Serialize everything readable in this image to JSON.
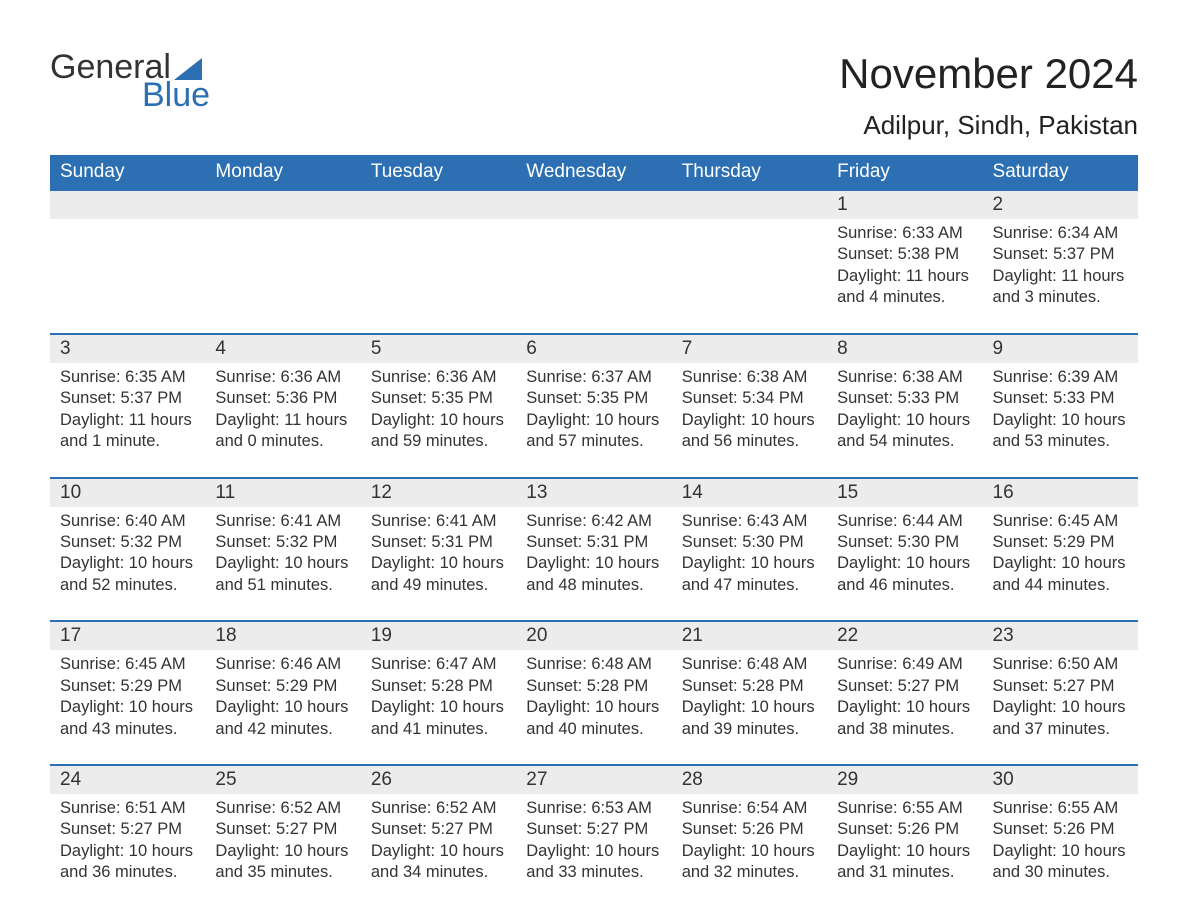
{
  "logo": {
    "text_general": "General",
    "text_blue": "Blue",
    "shape_color": "#2c6fb3"
  },
  "title": "November 2024",
  "location": "Adilpur, Sindh, Pakistan",
  "colors": {
    "header_bg": "#2c6fb3",
    "header_text": "#ffffff",
    "daynum_bg": "#ececec",
    "row_border": "#2c6fb3",
    "body_text": "#333333",
    "background": "#ffffff"
  },
  "typography": {
    "month_title_fontsize": 42,
    "location_fontsize": 26,
    "weekday_fontsize": 19,
    "daynum_fontsize": 19,
    "detail_fontsize": 16.5,
    "font_family": "Arial"
  },
  "weekdays": [
    "Sunday",
    "Monday",
    "Tuesday",
    "Wednesday",
    "Thursday",
    "Friday",
    "Saturday"
  ],
  "labels": {
    "sunrise": "Sunrise: ",
    "sunset": "Sunset: ",
    "daylight": "Daylight: "
  },
  "weeks": [
    [
      null,
      null,
      null,
      null,
      null,
      {
        "day": "1",
        "sunrise": "6:33 AM",
        "sunset": "5:38 PM",
        "daylight": "11 hours and 4 minutes."
      },
      {
        "day": "2",
        "sunrise": "6:34 AM",
        "sunset": "5:37 PM",
        "daylight": "11 hours and 3 minutes."
      }
    ],
    [
      {
        "day": "3",
        "sunrise": "6:35 AM",
        "sunset": "5:37 PM",
        "daylight": "11 hours and 1 minute."
      },
      {
        "day": "4",
        "sunrise": "6:36 AM",
        "sunset": "5:36 PM",
        "daylight": "11 hours and 0 minutes."
      },
      {
        "day": "5",
        "sunrise": "6:36 AM",
        "sunset": "5:35 PM",
        "daylight": "10 hours and 59 minutes."
      },
      {
        "day": "6",
        "sunrise": "6:37 AM",
        "sunset": "5:35 PM",
        "daylight": "10 hours and 57 minutes."
      },
      {
        "day": "7",
        "sunrise": "6:38 AM",
        "sunset": "5:34 PM",
        "daylight": "10 hours and 56 minutes."
      },
      {
        "day": "8",
        "sunrise": "6:38 AM",
        "sunset": "5:33 PM",
        "daylight": "10 hours and 54 minutes."
      },
      {
        "day": "9",
        "sunrise": "6:39 AM",
        "sunset": "5:33 PM",
        "daylight": "10 hours and 53 minutes."
      }
    ],
    [
      {
        "day": "10",
        "sunrise": "6:40 AM",
        "sunset": "5:32 PM",
        "daylight": "10 hours and 52 minutes."
      },
      {
        "day": "11",
        "sunrise": "6:41 AM",
        "sunset": "5:32 PM",
        "daylight": "10 hours and 51 minutes."
      },
      {
        "day": "12",
        "sunrise": "6:41 AM",
        "sunset": "5:31 PM",
        "daylight": "10 hours and 49 minutes."
      },
      {
        "day": "13",
        "sunrise": "6:42 AM",
        "sunset": "5:31 PM",
        "daylight": "10 hours and 48 minutes."
      },
      {
        "day": "14",
        "sunrise": "6:43 AM",
        "sunset": "5:30 PM",
        "daylight": "10 hours and 47 minutes."
      },
      {
        "day": "15",
        "sunrise": "6:44 AM",
        "sunset": "5:30 PM",
        "daylight": "10 hours and 46 minutes."
      },
      {
        "day": "16",
        "sunrise": "6:45 AM",
        "sunset": "5:29 PM",
        "daylight": "10 hours and 44 minutes."
      }
    ],
    [
      {
        "day": "17",
        "sunrise": "6:45 AM",
        "sunset": "5:29 PM",
        "daylight": "10 hours and 43 minutes."
      },
      {
        "day": "18",
        "sunrise": "6:46 AM",
        "sunset": "5:29 PM",
        "daylight": "10 hours and 42 minutes."
      },
      {
        "day": "19",
        "sunrise": "6:47 AM",
        "sunset": "5:28 PM",
        "daylight": "10 hours and 41 minutes."
      },
      {
        "day": "20",
        "sunrise": "6:48 AM",
        "sunset": "5:28 PM",
        "daylight": "10 hours and 40 minutes."
      },
      {
        "day": "21",
        "sunrise": "6:48 AM",
        "sunset": "5:28 PM",
        "daylight": "10 hours and 39 minutes."
      },
      {
        "day": "22",
        "sunrise": "6:49 AM",
        "sunset": "5:27 PM",
        "daylight": "10 hours and 38 minutes."
      },
      {
        "day": "23",
        "sunrise": "6:50 AM",
        "sunset": "5:27 PM",
        "daylight": "10 hours and 37 minutes."
      }
    ],
    [
      {
        "day": "24",
        "sunrise": "6:51 AM",
        "sunset": "5:27 PM",
        "daylight": "10 hours and 36 minutes."
      },
      {
        "day": "25",
        "sunrise": "6:52 AM",
        "sunset": "5:27 PM",
        "daylight": "10 hours and 35 minutes."
      },
      {
        "day": "26",
        "sunrise": "6:52 AM",
        "sunset": "5:27 PM",
        "daylight": "10 hours and 34 minutes."
      },
      {
        "day": "27",
        "sunrise": "6:53 AM",
        "sunset": "5:27 PM",
        "daylight": "10 hours and 33 minutes."
      },
      {
        "day": "28",
        "sunrise": "6:54 AM",
        "sunset": "5:26 PM",
        "daylight": "10 hours and 32 minutes."
      },
      {
        "day": "29",
        "sunrise": "6:55 AM",
        "sunset": "5:26 PM",
        "daylight": "10 hours and 31 minutes."
      },
      {
        "day": "30",
        "sunrise": "6:55 AM",
        "sunset": "5:26 PM",
        "daylight": "10 hours and 30 minutes."
      }
    ]
  ]
}
